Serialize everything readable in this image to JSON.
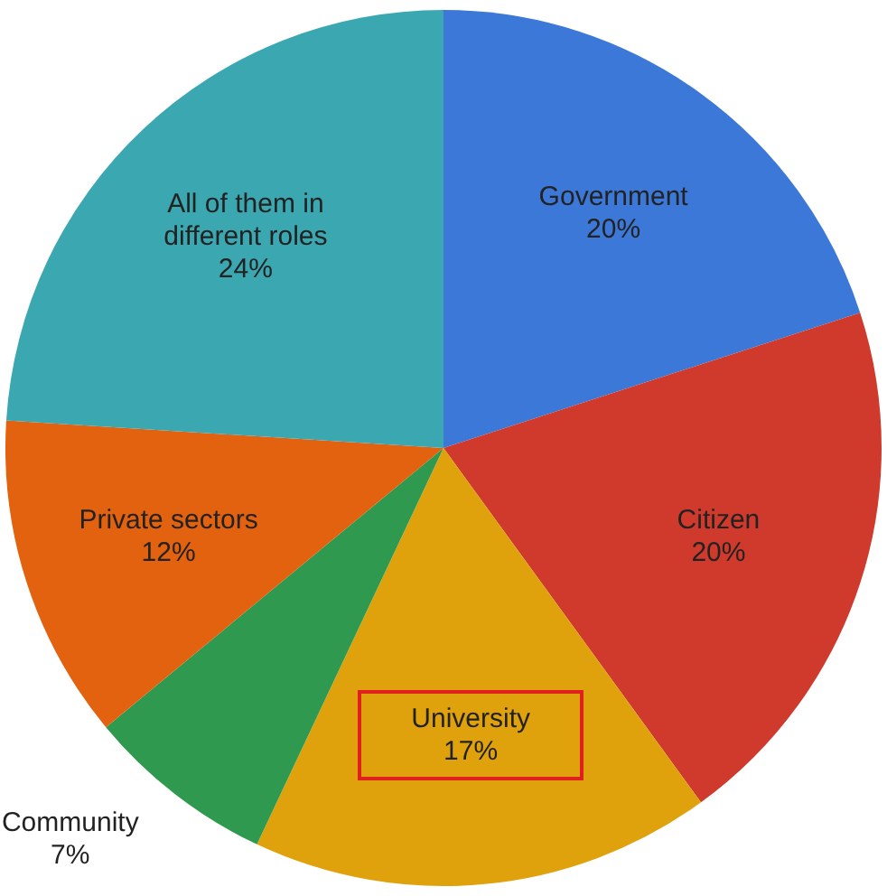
{
  "chart_data": {
    "type": "pie",
    "categories": [
      "Government",
      "Citizen",
      "University",
      "Community",
      "Private sectors",
      "All of them in different roles"
    ],
    "values": [
      20,
      20,
      17,
      7,
      12,
      24
    ],
    "value_labels": [
      "20%",
      "20%",
      "17%",
      "7%",
      "12%",
      "24%"
    ],
    "colors": [
      "#3c78d8",
      "#cf3a2c",
      "#e0a20c",
      "#2f9a4f",
      "#e2620f",
      "#3ba7b1"
    ],
    "legend": false
  }
}
